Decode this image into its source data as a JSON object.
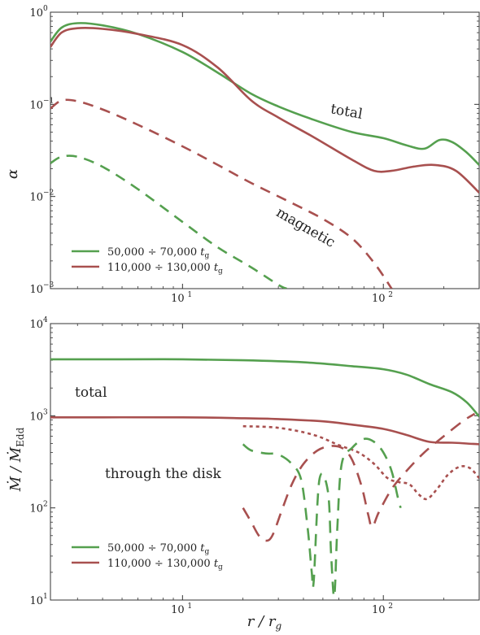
{
  "chart_data": [
    {
      "type": "line",
      "xscale": "log",
      "yscale": "log",
      "xlim": [
        2.2,
        300
      ],
      "ylim": [
        0.001,
        1
      ],
      "xticks": [
        {
          "value": 10,
          "base": "10",
          "exp": "1"
        },
        {
          "value": 100,
          "base": "10",
          "exp": "2"
        }
      ],
      "yticks": [
        {
          "value": 0.001,
          "base": "10",
          "exp": "−3"
        },
        {
          "value": 0.01,
          "base": "10",
          "exp": "−2"
        },
        {
          "value": 0.1,
          "base": "10",
          "exp": "−1"
        },
        {
          "value": 1,
          "base": "10",
          "exp": "0"
        }
      ],
      "ylabel": "α",
      "xlabel": "",
      "annotations": [
        {
          "text": "total",
          "x": 65,
          "y": 0.075,
          "rotate": 10
        },
        {
          "text": "magnetic",
          "x": 40,
          "y": 0.0042,
          "rotate": 30
        }
      ],
      "legend": {
        "position": "bottom-left",
        "entries": [
          {
            "label": "50,000 ÷ 70,000",
            "sub_t": "t",
            "sub": "g",
            "color": "#55a04f"
          },
          {
            "label": "110,000 ÷ 130,000",
            "sub_t": "t",
            "sub": "g",
            "color": "#a8504f"
          }
        ]
      },
      "series": [
        {
          "id": "green-total",
          "color": "#55a04f",
          "dash": "",
          "points": [
            [
              2.2,
              0.48
            ],
            [
              2.5,
              0.68
            ],
            [
              3,
              0.76
            ],
            [
              4,
              0.72
            ],
            [
              6,
              0.58
            ],
            [
              10,
              0.37
            ],
            [
              15,
              0.22
            ],
            [
              22,
              0.13
            ],
            [
              30,
              0.095
            ],
            [
              45,
              0.068
            ],
            [
              70,
              0.05
            ],
            [
              100,
              0.043
            ],
            [
              130,
              0.036
            ],
            [
              160,
              0.033
            ],
            [
              190,
              0.041
            ],
            [
              220,
              0.039
            ],
            [
              260,
              0.03
            ],
            [
              300,
              0.022
            ]
          ]
        },
        {
          "id": "red-total",
          "color": "#a8504f",
          "dash": "",
          "points": [
            [
              2.2,
              0.42
            ],
            [
              2.5,
              0.6
            ],
            [
              3,
              0.67
            ],
            [
              4,
              0.66
            ],
            [
              6,
              0.58
            ],
            [
              10,
              0.44
            ],
            [
              15,
              0.25
            ],
            [
              22,
              0.11
            ],
            [
              30,
              0.072
            ],
            [
              45,
              0.044
            ],
            [
              70,
              0.025
            ],
            [
              90,
              0.019
            ],
            [
              110,
              0.019
            ],
            [
              140,
              0.021
            ],
            [
              180,
              0.022
            ],
            [
              230,
              0.019
            ],
            [
              300,
              0.011
            ]
          ]
        },
        {
          "id": "red-magnetic",
          "color": "#a8504f",
          "dash": "13,9",
          "points": [
            [
              2.2,
              0.09
            ],
            [
              2.5,
              0.11
            ],
            [
              3,
              0.108
            ],
            [
              4,
              0.088
            ],
            [
              6,
              0.06
            ],
            [
              10,
              0.035
            ],
            [
              15,
              0.022
            ],
            [
              22,
              0.014
            ],
            [
              35,
              0.0085
            ],
            [
              50,
              0.0057
            ],
            [
              70,
              0.0035
            ],
            [
              90,
              0.0019
            ],
            [
              110,
              0.001
            ]
          ]
        },
        {
          "id": "green-magnetic",
          "color": "#55a04f",
          "dash": "13,9",
          "points": [
            [
              2.2,
              0.023
            ],
            [
              2.5,
              0.027
            ],
            [
              3,
              0.027
            ],
            [
              4,
              0.021
            ],
            [
              6,
              0.012
            ],
            [
              10,
              0.0053
            ],
            [
              15,
              0.0028
            ],
            [
              22,
              0.0017
            ],
            [
              30,
              0.0011
            ],
            [
              33,
              0.001
            ]
          ]
        }
      ]
    },
    {
      "type": "line",
      "xscale": "log",
      "yscale": "log",
      "xlim": [
        2.2,
        300
      ],
      "ylim": [
        10,
        10000
      ],
      "xticks": [
        {
          "value": 10,
          "base": "10",
          "exp": "1"
        },
        {
          "value": 100,
          "base": "10",
          "exp": "2"
        }
      ],
      "yticks": [
        {
          "value": 10,
          "base": "10",
          "exp": "1"
        },
        {
          "value": 100,
          "base": "10",
          "exp": "2"
        },
        {
          "value": 1000,
          "base": "10",
          "exp": "3"
        },
        {
          "value": 10000,
          "base": "10",
          "exp": "4"
        }
      ],
      "ylabel": "Ṁ / Ṁ_Edd",
      "xlabel": "r / r_g",
      "annotations": [
        {
          "text": "total",
          "x": 3.5,
          "y": 1600,
          "rotate": 0
        },
        {
          "text": "through the disk",
          "x": 8,
          "y": 210,
          "rotate": 0
        }
      ],
      "legend": {
        "position": "bottom-left",
        "entries": [
          {
            "label": "50,000 ÷ 70,000",
            "sub_t": "t",
            "sub": "g",
            "color": "#55a04f"
          },
          {
            "label": "110,000 ÷ 130,000",
            "sub_t": "t",
            "sub": "g",
            "color": "#a8504f"
          }
        ]
      },
      "series": [
        {
          "id": "green-total",
          "color": "#55a04f",
          "dash": "",
          "points": [
            [
              2.2,
              4100
            ],
            [
              5,
              4100
            ],
            [
              10,
              4100
            ],
            [
              20,
              4000
            ],
            [
              40,
              3800
            ],
            [
              70,
              3450
            ],
            [
              100,
              3200
            ],
            [
              130,
              2800
            ],
            [
              170,
              2200
            ],
            [
              220,
              1800
            ],
            [
              260,
              1400
            ],
            [
              300,
              980
            ]
          ]
        },
        {
          "id": "red-total",
          "color": "#a8504f",
          "dash": "",
          "points": [
            [
              2.2,
              960
            ],
            [
              10,
              960
            ],
            [
              20,
              940
            ],
            [
              30,
              920
            ],
            [
              50,
              870
            ],
            [
              70,
              800
            ],
            [
              100,
              720
            ],
            [
              130,
              620
            ],
            [
              170,
              520
            ],
            [
              220,
              510
            ],
            [
              260,
              500
            ],
            [
              300,
              490
            ]
          ]
        },
        {
          "id": "red-through-disk",
          "color": "#a8504f",
          "dash": "4,4",
          "points": [
            [
              20,
              770
            ],
            [
              30,
              740
            ],
            [
              45,
              620
            ],
            [
              60,
              480
            ],
            [
              75,
              400
            ],
            [
              90,
              300
            ],
            [
              105,
              210
            ],
            [
              120,
              190
            ],
            [
              135,
              180
            ],
            [
              150,
              140
            ],
            [
              165,
              125
            ],
            [
              185,
              160
            ],
            [
              210,
              230
            ],
            [
              240,
              280
            ],
            [
              270,
              270
            ],
            [
              300,
              210
            ]
          ]
        },
        {
          "id": "red-disk-dashed",
          "color": "#a8504f",
          "dash": "15,10",
          "points": [
            [
              20,
              100
            ],
            [
              22,
              70
            ],
            [
              24,
              50
            ],
            [
              26,
              44
            ],
            [
              28,
              50
            ],
            [
              31,
              90
            ],
            [
              35,
              180
            ],
            [
              40,
              300
            ],
            [
              47,
              420
            ],
            [
              55,
              470
            ],
            [
              63,
              440
            ],
            [
              70,
              330
            ],
            [
              78,
              170
            ],
            [
              84,
              85
            ],
            [
              88,
              62
            ],
            [
              95,
              90
            ],
            [
              110,
              160
            ],
            [
              130,
              250
            ],
            [
              160,
              400
            ],
            [
              200,
              600
            ],
            [
              250,
              880
            ],
            [
              285,
              1050
            ]
          ]
        },
        {
          "id": "green-disk-dashed",
          "color": "#55a04f",
          "dash": "15,10",
          "points": [
            [
              20,
              490
            ],
            [
              22,
              420
            ],
            [
              26,
              390
            ],
            [
              30,
              380
            ],
            [
              35,
              300
            ],
            [
              39,
              200
            ],
            [
              42,
              60
            ],
            [
              44,
              20
            ],
            [
              45,
              16
            ],
            [
              48,
              200
            ],
            [
              53,
              150
            ],
            [
              55,
              30
            ],
            [
              57,
              11
            ],
            [
              59,
              60
            ],
            [
              62,
              300
            ],
            [
              70,
              450
            ],
            [
              80,
              560
            ],
            [
              90,
              520
            ],
            [
              100,
              400
            ],
            [
              110,
              250
            ],
            [
              118,
              130
            ],
            [
              122,
              100
            ]
          ]
        }
      ]
    }
  ]
}
